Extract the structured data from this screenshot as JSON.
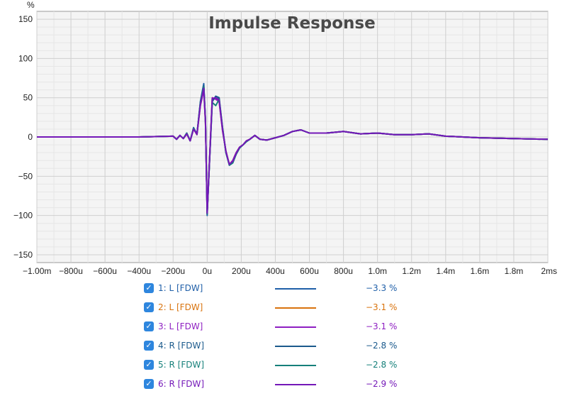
{
  "chart_data": {
    "type": "line",
    "title": "Impulse Response",
    "ylabel": "%",
    "xlim": [
      -0.001,
      0.002
    ],
    "ylim": [
      -160,
      160
    ],
    "grid": true,
    "y_ticks": [
      150,
      100,
      50,
      0,
      -50,
      -100,
      -150
    ],
    "y_tick_labels": [
      "150",
      "100",
      "50",
      "0",
      "−50",
      "−100",
      "−150"
    ],
    "x_ticks": [
      -0.001,
      -0.0008,
      -0.0006,
      -0.0004,
      -0.0002,
      0,
      0.0002,
      0.0004,
      0.0006,
      0.0008,
      0.001,
      0.0012,
      0.0014,
      0.0016,
      0.0018,
      0.002
    ],
    "x_tick_labels": [
      "−1.00m",
      "−800u",
      "−600u",
      "−400u",
      "−200u",
      "0u",
      "200u",
      "400u",
      "600u",
      "800u",
      "1.0m",
      "1.2m",
      "1.4m",
      "1.6m",
      "1.8m",
      "2ms"
    ],
    "x": [
      -0.001,
      -0.0008,
      -0.0006,
      -0.0004,
      -0.0002,
      -0.00018,
      -0.00016,
      -0.00014,
      -0.00012,
      -0.0001,
      -8e-05,
      -6e-05,
      -4e-05,
      -2e-05,
      -1e-05,
      0,
      1e-05,
      3e-05,
      5e-05,
      7e-05,
      9e-05,
      0.00011,
      0.00013,
      0.00015,
      0.00017,
      0.00019,
      0.00021,
      0.00023,
      0.00025,
      0.00028,
      0.00031,
      0.00035,
      0.0004,
      0.00045,
      0.0005,
      0.00055,
      0.0006,
      0.0007,
      0.0008,
      0.0009,
      0.001,
      0.0011,
      0.0012,
      0.0013,
      0.0014,
      0.0015,
      0.0016,
      0.0018,
      0.002
    ],
    "series": [
      {
        "name": "1: L [FDW]",
        "color": "#1f5fa8",
        "values": [
          0,
          0,
          0,
          0,
          1,
          -3,
          2,
          -2,
          5,
          -5,
          12,
          3,
          45,
          68,
          20,
          -100,
          -50,
          48,
          50,
          48,
          10,
          -20,
          -35,
          -32,
          -22,
          -14,
          -10,
          -6,
          -3,
          2,
          -3,
          -4,
          -1,
          2,
          7,
          9,
          5,
          5,
          7,
          4,
          5,
          3,
          3,
          4,
          1,
          0,
          -1,
          -2,
          -3
        ]
      },
      {
        "name": "2: L [FDW]",
        "color": "#d9730d",
        "values": [
          0,
          0,
          0,
          0,
          1,
          -3,
          2,
          -2,
          4,
          -5,
          10,
          3,
          40,
          60,
          18,
          -96,
          -48,
          50,
          48,
          45,
          8,
          -18,
          -35,
          -30,
          -20,
          -13,
          -10,
          -5,
          -3,
          2,
          -3,
          -4,
          -1,
          2,
          7,
          9,
          5,
          5,
          7,
          4,
          5,
          3,
          3,
          4,
          1,
          0,
          -1,
          -2,
          -3
        ]
      },
      {
        "name": "3: L [FDW]",
        "color": "#8e1fc2",
        "values": [
          0,
          0,
          0,
          0,
          1,
          -3,
          2,
          -2,
          4,
          -5,
          10,
          3,
          40,
          60,
          18,
          -96,
          -48,
          50,
          48,
          45,
          8,
          -18,
          -35,
          -30,
          -20,
          -13,
          -10,
          -5,
          -3,
          2,
          -3,
          -4,
          -1,
          2,
          7,
          9,
          5,
          5,
          7,
          4,
          5,
          3,
          3,
          4,
          1,
          0,
          -1,
          -2,
          -3
        ]
      },
      {
        "name": "4: R [FDW]",
        "color": "#1b5a8c",
        "values": [
          0,
          0,
          0,
          0,
          1,
          -3,
          2,
          -2,
          5,
          -5,
          11,
          4,
          44,
          65,
          22,
          -98,
          -50,
          45,
          52,
          50,
          12,
          -20,
          -36,
          -33,
          -22,
          -14,
          -10,
          -6,
          -3,
          2,
          -3,
          -4,
          -1,
          2,
          7,
          9,
          5,
          5,
          7,
          4,
          5,
          3,
          3,
          4,
          1,
          0,
          -1,
          -2,
          -3
        ]
      },
      {
        "name": "5: R [FDW]",
        "color": "#16807a",
        "values": [
          0,
          0,
          0,
          0,
          1,
          -3,
          2,
          -2,
          5,
          -5,
          11,
          4,
          43,
          64,
          22,
          -98,
          -50,
          44,
          40,
          48,
          12,
          -20,
          -36,
          -33,
          -22,
          -14,
          -10,
          -6,
          -3,
          2,
          -3,
          -4,
          -1,
          2,
          7,
          9,
          5,
          5,
          7,
          4,
          5,
          3,
          3,
          4,
          1,
          0,
          -1,
          -2,
          -3
        ]
      },
      {
        "name": "6: R [FDW]",
        "color": "#7418b8",
        "values": [
          0,
          0,
          0,
          0,
          1,
          -3,
          2,
          -2,
          4,
          -5,
          10,
          4,
          41,
          62,
          20,
          -97,
          -49,
          49,
          50,
          47,
          10,
          -19,
          -35,
          -31,
          -21,
          -13,
          -10,
          -5,
          -3,
          2,
          -3,
          -4,
          -1,
          2,
          7,
          9,
          5,
          5,
          7,
          4,
          5,
          3,
          3,
          4,
          1,
          0,
          -1,
          -2,
          -3
        ]
      }
    ]
  },
  "legend": [
    {
      "check": "✓",
      "name": "1: L [FDW]",
      "value": "−3.3 %",
      "color": "#1f5fa8"
    },
    {
      "check": "✓",
      "name": "2: L [FDW]",
      "value": "−3.1 %",
      "color": "#d9730d"
    },
    {
      "check": "✓",
      "name": "3: L [FDW]",
      "value": "−3.1 %",
      "color": "#8e1fc2"
    },
    {
      "check": "✓",
      "name": "4: R [FDW]",
      "value": "−2.8 %",
      "color": "#1b5a8c"
    },
    {
      "check": "✓",
      "name": "5: R [FDW]",
      "value": "−2.8 %",
      "color": "#16807a"
    },
    {
      "check": "✓",
      "name": "6: R [FDW]",
      "value": "−2.9 %",
      "color": "#7418b8"
    }
  ]
}
